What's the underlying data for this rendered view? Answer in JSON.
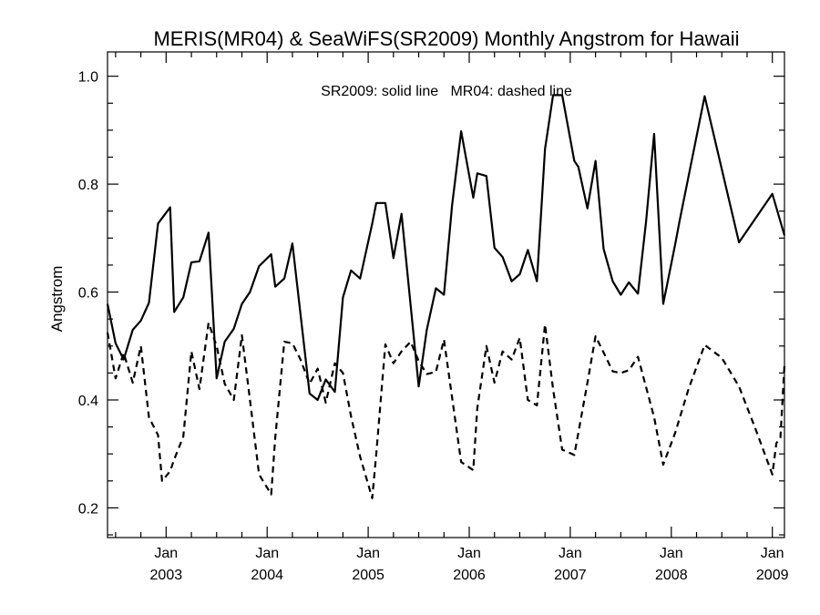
{
  "chart_data": {
    "type": "line",
    "title": "MERIS(MR04) & SeaWiFS(SR2009) Monthly Angstrom for Hawaii",
    "annotation": "SR2009: solid line   MR04: dashed line",
    "ylabel": "Angstrom",
    "xlabel": "",
    "xlim": [
      2002.42,
      2009.12
    ],
    "ylim": [
      0.145,
      1.045
    ],
    "y_ticks": [
      {
        "value": 0.2,
        "label": "0.2"
      },
      {
        "value": 0.4,
        "label": "0.4"
      },
      {
        "value": 0.6,
        "label": "0.6"
      },
      {
        "value": 0.8,
        "label": "0.8"
      },
      {
        "value": 1.0,
        "label": "1.0"
      }
    ],
    "x_ticks": [
      {
        "value": 2003.0,
        "month": "Jan",
        "year": "2003"
      },
      {
        "value": 2004.0,
        "month": "Jan",
        "year": "2004"
      },
      {
        "value": 2005.0,
        "month": "Jan",
        "year": "2005"
      },
      {
        "value": 2006.0,
        "month": "Jan",
        "year": "2006"
      },
      {
        "value": 2007.0,
        "month": "Jan",
        "year": "2007"
      },
      {
        "value": 2008.0,
        "month": "Jan",
        "year": "2008"
      },
      {
        "value": 2009.0,
        "month": "Jan",
        "year": "2009"
      }
    ],
    "grid": false,
    "series": [
      {
        "id": "SR2009",
        "style": "solid",
        "color": "#000000",
        "points": [
          [
            2002.42,
            0.578
          ],
          [
            2002.5,
            0.505
          ],
          [
            2002.58,
            0.475
          ],
          [
            2002.67,
            0.53
          ],
          [
            2002.75,
            0.547
          ],
          [
            2002.83,
            0.58
          ],
          [
            2002.92,
            0.727
          ],
          [
            2003.04,
            0.757
          ],
          [
            2003.08,
            0.563
          ],
          [
            2003.17,
            0.59
          ],
          [
            2003.25,
            0.655
          ],
          [
            2003.33,
            0.657
          ],
          [
            2003.42,
            0.71
          ],
          [
            2003.5,
            0.44
          ],
          [
            2003.58,
            0.508
          ],
          [
            2003.67,
            0.532
          ],
          [
            2003.75,
            0.578
          ],
          [
            2003.83,
            0.6
          ],
          [
            2003.92,
            0.648
          ],
          [
            2004.04,
            0.67
          ],
          [
            2004.08,
            0.61
          ],
          [
            2004.17,
            0.625
          ],
          [
            2004.25,
            0.69
          ],
          [
            2004.42,
            0.412
          ],
          [
            2004.5,
            0.4
          ],
          [
            2004.58,
            0.438
          ],
          [
            2004.67,
            0.415
          ],
          [
            2004.75,
            0.59
          ],
          [
            2004.83,
            0.64
          ],
          [
            2004.92,
            0.625
          ],
          [
            2005.04,
            0.727
          ],
          [
            2005.08,
            0.765
          ],
          [
            2005.17,
            0.765
          ],
          [
            2005.25,
            0.663
          ],
          [
            2005.33,
            0.745
          ],
          [
            2005.5,
            0.425
          ],
          [
            2005.58,
            0.53
          ],
          [
            2005.67,
            0.607
          ],
          [
            2005.75,
            0.595
          ],
          [
            2005.83,
            0.76
          ],
          [
            2005.92,
            0.898
          ],
          [
            2006.04,
            0.775
          ],
          [
            2006.08,
            0.82
          ],
          [
            2006.17,
            0.815
          ],
          [
            2006.25,
            0.682
          ],
          [
            2006.33,
            0.665
          ],
          [
            2006.42,
            0.62
          ],
          [
            2006.5,
            0.633
          ],
          [
            2006.58,
            0.678
          ],
          [
            2006.67,
            0.62
          ],
          [
            2006.75,
            0.865
          ],
          [
            2006.83,
            0.965
          ],
          [
            2006.92,
            0.965
          ],
          [
            2007.04,
            0.843
          ],
          [
            2007.08,
            0.832
          ],
          [
            2007.17,
            0.755
          ],
          [
            2007.25,
            0.843
          ],
          [
            2007.33,
            0.68
          ],
          [
            2007.42,
            0.62
          ],
          [
            2007.5,
            0.595
          ],
          [
            2007.58,
            0.618
          ],
          [
            2007.67,
            0.597
          ],
          [
            2007.75,
            0.73
          ],
          [
            2007.83,
            0.893
          ],
          [
            2007.92,
            0.578
          ],
          [
            2008.04,
            0.69
          ],
          [
            2008.08,
            0.73
          ],
          [
            2008.33,
            0.963
          ],
          [
            2008.67,
            0.692
          ],
          [
            2009.0,
            0.782
          ],
          [
            2009.12,
            0.705
          ]
        ]
      },
      {
        "id": "MR04",
        "style": "dashed",
        "color": "#000000",
        "points": [
          [
            2002.42,
            0.525
          ],
          [
            2002.5,
            0.44
          ],
          [
            2002.58,
            0.487
          ],
          [
            2002.67,
            0.432
          ],
          [
            2002.75,
            0.5
          ],
          [
            2002.83,
            0.368
          ],
          [
            2002.92,
            0.335
          ],
          [
            2002.96,
            0.25
          ],
          [
            2003.04,
            0.268
          ],
          [
            2003.08,
            0.29
          ],
          [
            2003.17,
            0.332
          ],
          [
            2003.25,
            0.49
          ],
          [
            2003.33,
            0.42
          ],
          [
            2003.42,
            0.543
          ],
          [
            2003.5,
            0.5
          ],
          [
            2003.58,
            0.43
          ],
          [
            2003.67,
            0.4
          ],
          [
            2003.75,
            0.52
          ],
          [
            2003.83,
            0.4
          ],
          [
            2003.92,
            0.262
          ],
          [
            2004.04,
            0.225
          ],
          [
            2004.08,
            0.33
          ],
          [
            2004.17,
            0.508
          ],
          [
            2004.25,
            0.505
          ],
          [
            2004.33,
            0.475
          ],
          [
            2004.42,
            0.43
          ],
          [
            2004.5,
            0.458
          ],
          [
            2004.58,
            0.395
          ],
          [
            2004.67,
            0.468
          ],
          [
            2004.75,
            0.45
          ],
          [
            2004.83,
            0.37
          ],
          [
            2004.92,
            0.295
          ],
          [
            2005.04,
            0.218
          ],
          [
            2005.08,
            0.3
          ],
          [
            2005.17,
            0.503
          ],
          [
            2005.25,
            0.468
          ],
          [
            2005.33,
            0.49
          ],
          [
            2005.42,
            0.508
          ],
          [
            2005.5,
            0.472
          ],
          [
            2005.58,
            0.448
          ],
          [
            2005.67,
            0.452
          ],
          [
            2005.75,
            0.512
          ],
          [
            2005.83,
            0.405
          ],
          [
            2005.92,
            0.285
          ],
          [
            2006.04,
            0.27
          ],
          [
            2006.08,
            0.385
          ],
          [
            2006.17,
            0.5
          ],
          [
            2006.25,
            0.432
          ],
          [
            2006.33,
            0.49
          ],
          [
            2006.42,
            0.475
          ],
          [
            2006.5,
            0.515
          ],
          [
            2006.58,
            0.4
          ],
          [
            2006.67,
            0.39
          ],
          [
            2006.75,
            0.54
          ],
          [
            2006.83,
            0.42
          ],
          [
            2006.92,
            0.308
          ],
          [
            2007.04,
            0.298
          ],
          [
            2007.17,
            0.432
          ],
          [
            2007.25,
            0.518
          ],
          [
            2007.33,
            0.488
          ],
          [
            2007.42,
            0.453
          ],
          [
            2007.5,
            0.45
          ],
          [
            2007.58,
            0.455
          ],
          [
            2007.67,
            0.48
          ],
          [
            2007.83,
            0.368
          ],
          [
            2007.92,
            0.28
          ],
          [
            2008.04,
            0.34
          ],
          [
            2008.17,
            0.42
          ],
          [
            2008.33,
            0.502
          ],
          [
            2008.5,
            0.478
          ],
          [
            2008.67,
            0.425
          ],
          [
            2008.83,
            0.348
          ],
          [
            2009.0,
            0.262
          ],
          [
            2009.04,
            0.32
          ],
          [
            2009.08,
            0.33
          ],
          [
            2009.12,
            0.465
          ]
        ]
      }
    ]
  }
}
